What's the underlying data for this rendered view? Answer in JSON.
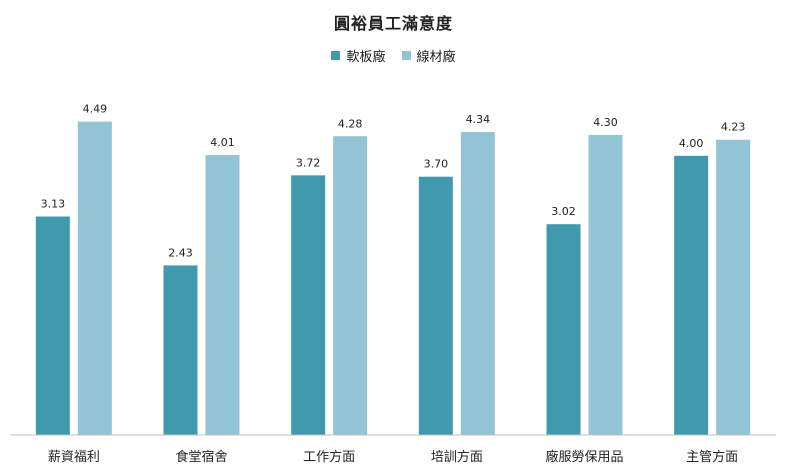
{
  "chart_data": {
    "type": "bar",
    "title": "圓裕員工滿意度",
    "categories": [
      "薪資福利",
      "食堂宿舍",
      "工作方面",
      "培訓方面",
      "廠服勞保用品",
      "主管方面"
    ],
    "series": [
      {
        "name": "軟板廠",
        "values": [
          3.13,
          2.43,
          3.72,
          3.7,
          3.02,
          4.0
        ],
        "color": "#4199AE",
        "labels": [
          "3.13",
          "2.43",
          "3.72",
          "3.70",
          "3.02",
          "4.00"
        ]
      },
      {
        "name": "線材廠",
        "values": [
          4.49,
          4.01,
          4.28,
          4.34,
          4.3,
          4.23
        ],
        "color": "#93C4D6",
        "labels": [
          "4.49",
          "4.01",
          "4.28",
          "4.34",
          "4.30",
          "4.23"
        ]
      }
    ],
    "ylim": [
      0,
      4.6
    ],
    "legend_position": "top-center",
    "grid": false
  }
}
